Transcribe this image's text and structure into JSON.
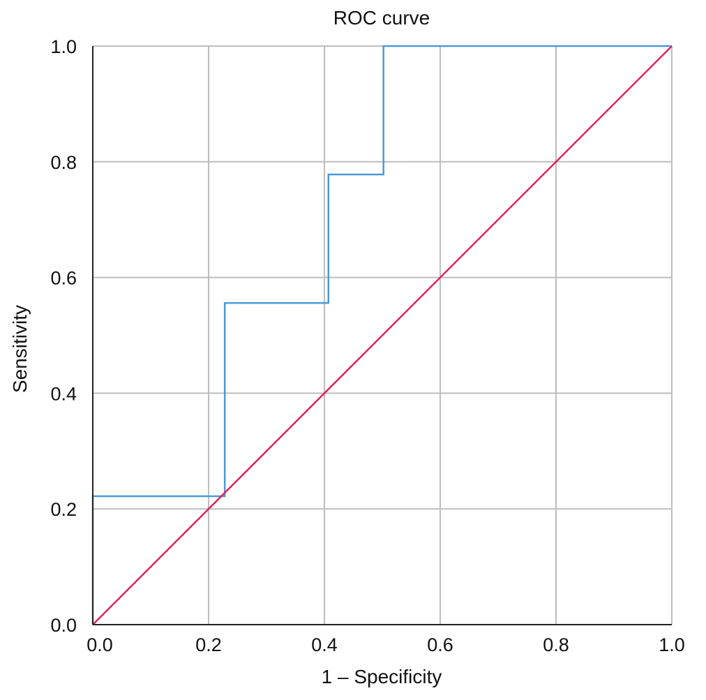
{
  "chart_data": {
    "type": "line",
    "title": "ROC curve",
    "xlabel": "1 – Specificity",
    "ylabel": "Sensitivity",
    "xlim": [
      0,
      1
    ],
    "ylim": [
      0,
      1
    ],
    "x_ticks": [
      "0.0",
      "0.2",
      "0.4",
      "0.6",
      "0.8",
      "1.0"
    ],
    "y_ticks": [
      "0.0",
      "0.2",
      "0.4",
      "0.6",
      "0.8",
      "1.0"
    ],
    "grid": true,
    "series": [
      {
        "color": "#4a9ad8",
        "step": true,
        "x": [
          0.0,
          0.0,
          0.228,
          0.228,
          0.407,
          0.407,
          0.502,
          0.502,
          1.0
        ],
        "y": [
          0.0,
          0.222,
          0.222,
          0.556,
          0.556,
          0.778,
          0.778,
          1.0,
          1.0
        ]
      },
      {
        "color": "#e0255a",
        "x": [
          0.0,
          1.0
        ],
        "y": [
          0.0,
          1.0
        ]
      }
    ]
  }
}
